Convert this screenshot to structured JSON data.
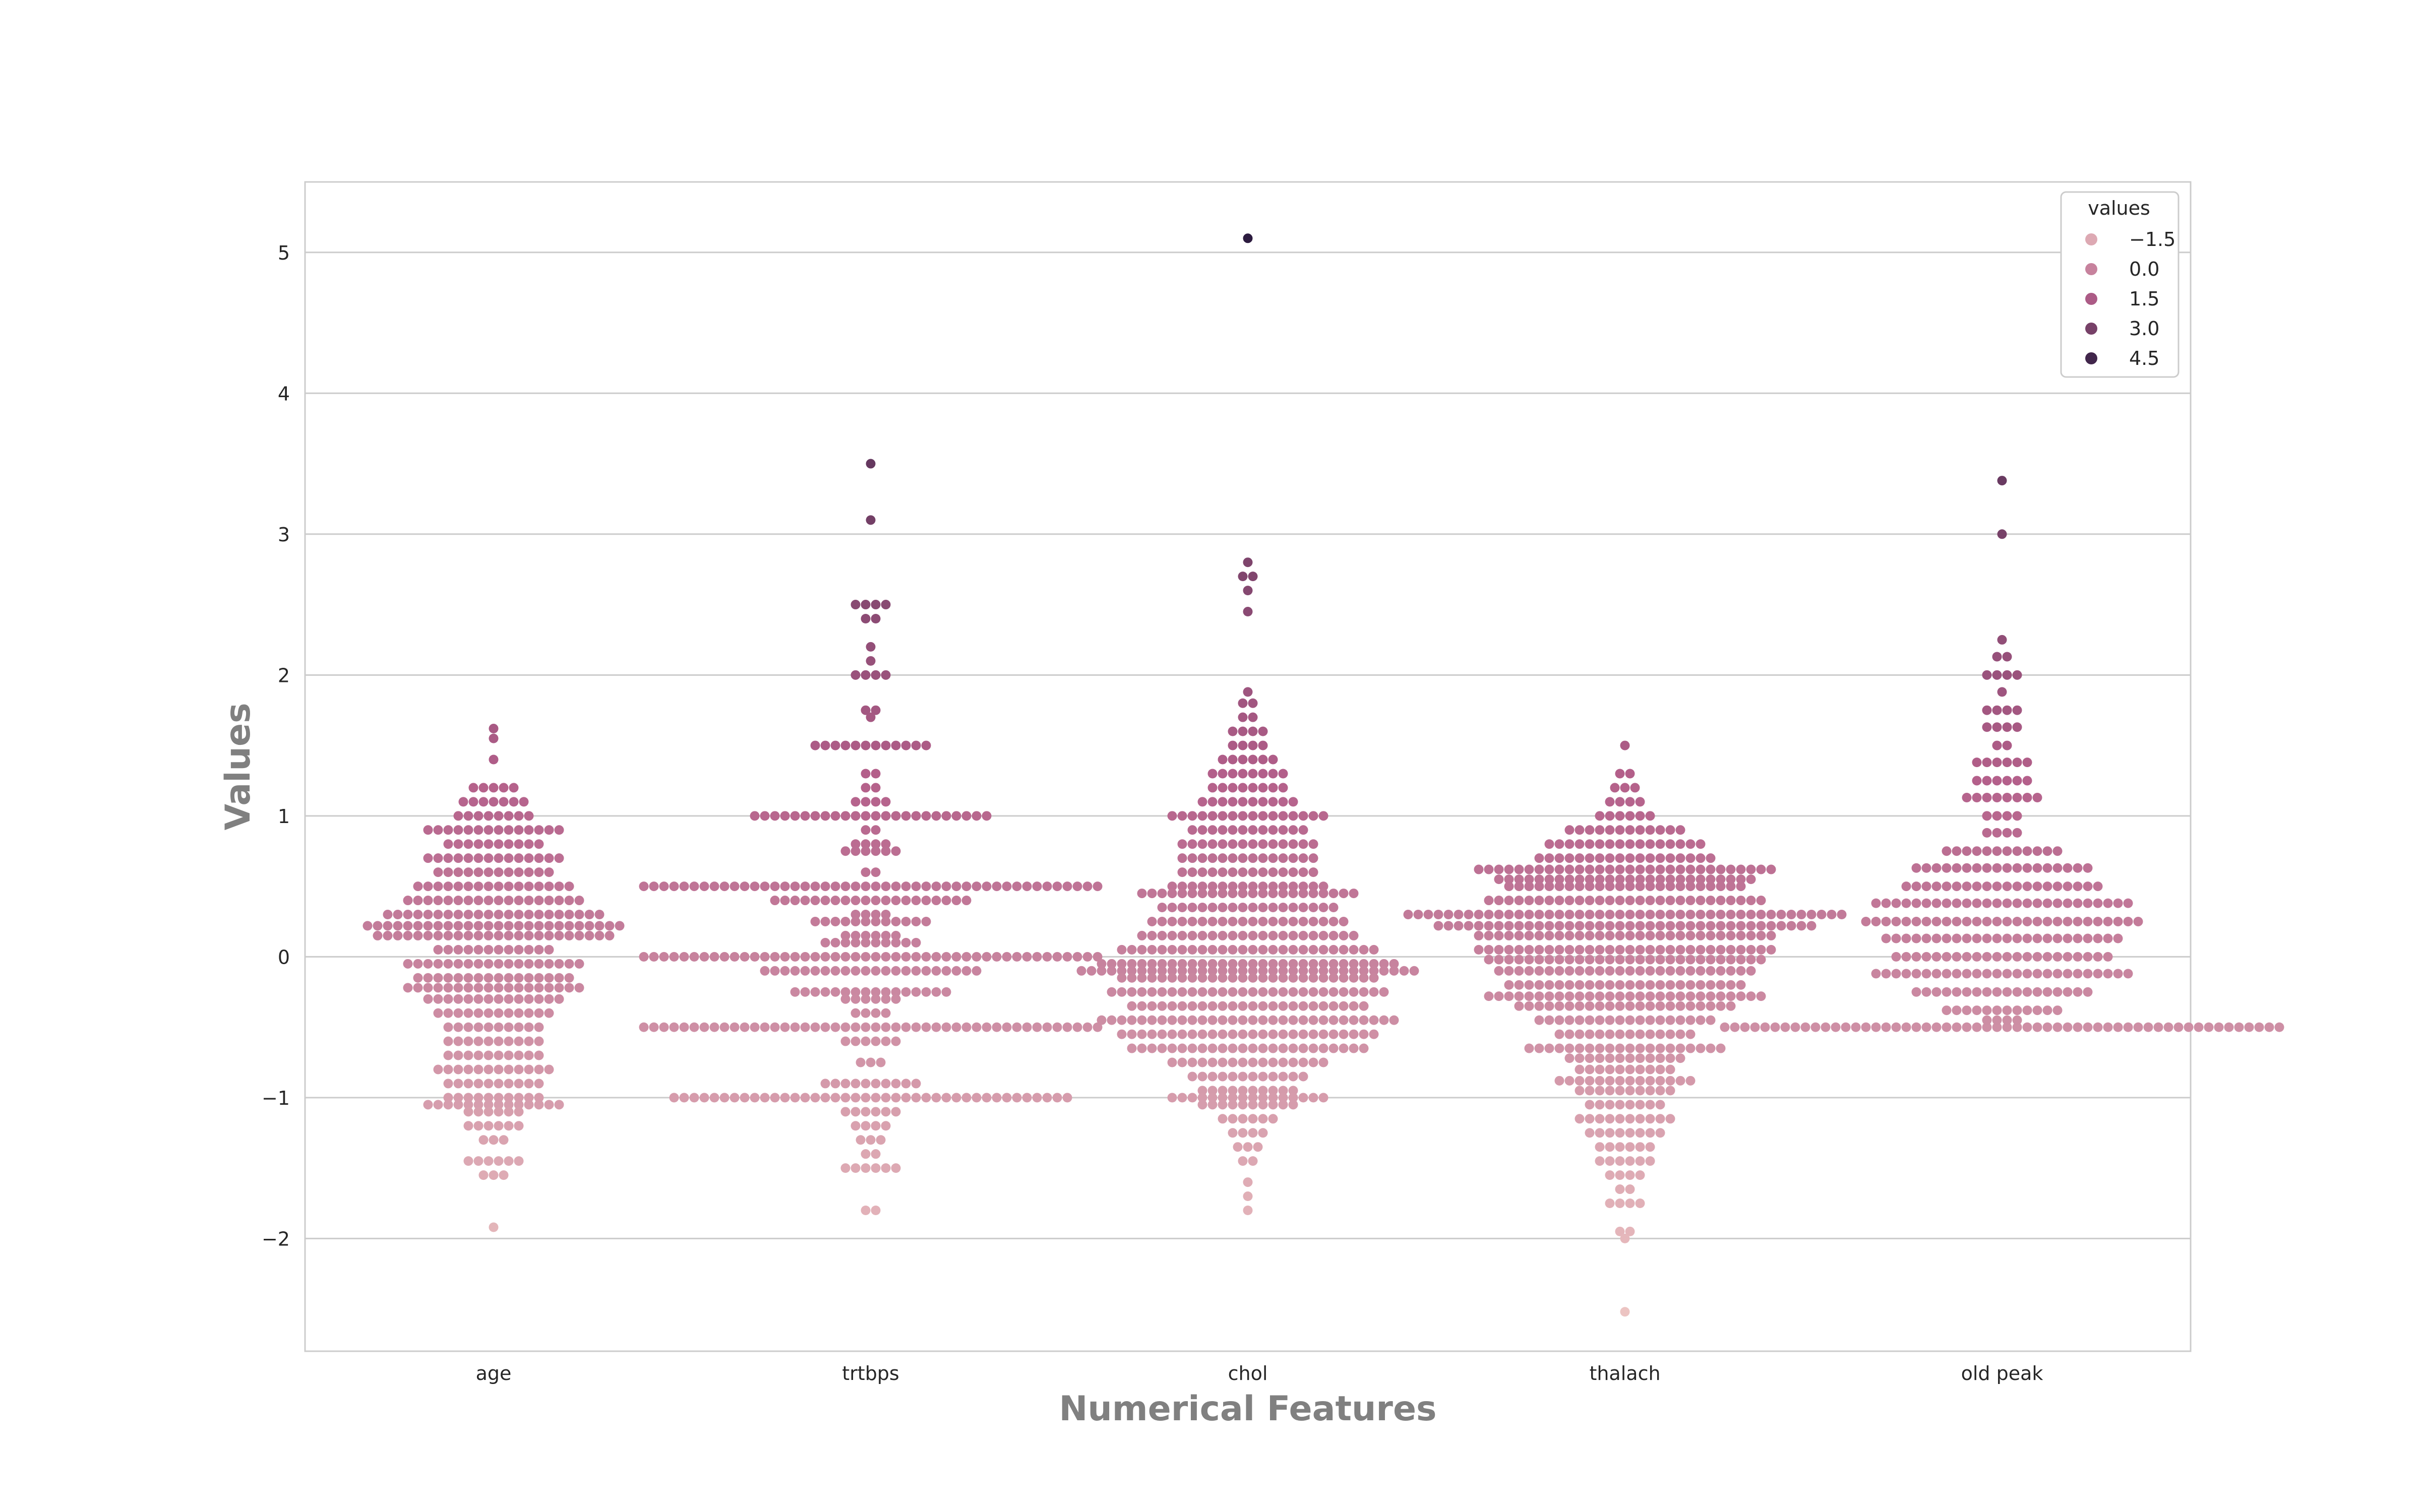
{
  "chart_data": {
    "type": "scatter",
    "subtype": "swarm",
    "xlabel": "Numerical Features",
    "ylabel": "Values",
    "categories": [
      "age",
      "trtbps",
      "chol",
      "thalach",
      "old peak"
    ],
    "ylim": [
      -2.8,
      5.5
    ],
    "yticks": [
      -2,
      -1,
      0,
      1,
      2,
      3,
      4,
      5
    ],
    "ytick_labels": [
      "−2",
      "−1",
      "0",
      "1",
      "2",
      "3",
      "4",
      "5"
    ],
    "grid": true,
    "legend": {
      "title": "values",
      "position": "top-right",
      "entries": [
        {
          "label": "−1.5",
          "value": -1.5
        },
        {
          "label": "0.0",
          "value": 0.0
        },
        {
          "label": "1.5",
          "value": 1.5
        },
        {
          "label": "3.0",
          "value": 3.0
        },
        {
          "label": "4.5",
          "value": 4.5
        }
      ]
    },
    "color_scale": {
      "min": -2.5,
      "max": 5.1,
      "low": "#ecc4c2",
      "mid": "#b35f8a",
      "high": "#2c1b3f"
    },
    "series": [
      {
        "category": "age",
        "groups": [
          [
            1.62,
            1
          ],
          [
            1.55,
            1
          ],
          [
            1.4,
            1
          ],
          [
            1.2,
            5
          ],
          [
            1.1,
            7
          ],
          [
            1.0,
            8
          ],
          [
            0.9,
            14
          ],
          [
            0.8,
            10
          ],
          [
            0.7,
            14
          ],
          [
            0.6,
            12
          ],
          [
            0.5,
            16
          ],
          [
            0.4,
            18
          ],
          [
            0.3,
            22
          ],
          [
            0.22,
            26
          ],
          [
            0.15,
            24
          ],
          [
            0.05,
            12
          ],
          [
            -0.05,
            18
          ],
          [
            -0.15,
            16
          ],
          [
            -0.22,
            18
          ],
          [
            -0.3,
            14
          ],
          [
            -0.4,
            12
          ],
          [
            -0.5,
            10
          ],
          [
            -0.6,
            10
          ],
          [
            -0.7,
            10
          ],
          [
            -0.8,
            12
          ],
          [
            -0.9,
            10
          ],
          [
            -1.0,
            10
          ],
          [
            -1.05,
            14
          ],
          [
            -1.1,
            6
          ],
          [
            -1.2,
            6
          ],
          [
            -1.3,
            3
          ],
          [
            -1.45,
            6
          ],
          [
            -1.55,
            3
          ],
          [
            -1.92,
            1
          ]
        ]
      },
      {
        "category": "trtbps",
        "groups": [
          [
            3.5,
            1
          ],
          [
            3.1,
            1
          ],
          [
            2.5,
            4
          ],
          [
            2.4,
            2
          ],
          [
            2.2,
            1
          ],
          [
            2.1,
            1
          ],
          [
            2.0,
            4
          ],
          [
            1.75,
            2
          ],
          [
            1.7,
            1
          ],
          [
            1.5,
            12
          ],
          [
            1.3,
            2
          ],
          [
            1.2,
            2
          ],
          [
            1.1,
            4
          ],
          [
            1.0,
            24
          ],
          [
            0.9,
            2
          ],
          [
            0.8,
            4
          ],
          [
            0.75,
            6
          ],
          [
            0.6,
            2
          ],
          [
            0.5,
            46
          ],
          [
            0.4,
            20
          ],
          [
            0.3,
            4
          ],
          [
            0.25,
            12
          ],
          [
            0.15,
            6
          ],
          [
            0.1,
            10
          ],
          [
            0.0,
            46
          ],
          [
            -0.1,
            22
          ],
          [
            -0.25,
            16
          ],
          [
            -0.3,
            6
          ],
          [
            -0.4,
            4
          ],
          [
            -0.5,
            46
          ],
          [
            -0.6,
            6
          ],
          [
            -0.75,
            3
          ],
          [
            -0.9,
            10
          ],
          [
            -1.0,
            40
          ],
          [
            -1.1,
            6
          ],
          [
            -1.2,
            4
          ],
          [
            -1.3,
            3
          ],
          [
            -1.4,
            2
          ],
          [
            -1.5,
            6
          ],
          [
            -1.8,
            2
          ]
        ]
      },
      {
        "category": "chol",
        "groups": [
          [
            5.1,
            1
          ],
          [
            2.8,
            1
          ],
          [
            2.7,
            2
          ],
          [
            2.6,
            1
          ],
          [
            2.45,
            1
          ],
          [
            1.88,
            1
          ],
          [
            1.8,
            2
          ],
          [
            1.7,
            2
          ],
          [
            1.6,
            4
          ],
          [
            1.5,
            4
          ],
          [
            1.4,
            6
          ],
          [
            1.3,
            8
          ],
          [
            1.2,
            8
          ],
          [
            1.1,
            10
          ],
          [
            1.0,
            16
          ],
          [
            0.9,
            12
          ],
          [
            0.8,
            14
          ],
          [
            0.7,
            14
          ],
          [
            0.6,
            14
          ],
          [
            0.5,
            16
          ],
          [
            0.45,
            22
          ],
          [
            0.35,
            18
          ],
          [
            0.25,
            20
          ],
          [
            0.15,
            22
          ],
          [
            0.05,
            26
          ],
          [
            -0.05,
            30
          ],
          [
            -0.1,
            34
          ],
          [
            -0.15,
            26
          ],
          [
            -0.25,
            28
          ],
          [
            -0.35,
            24
          ],
          [
            -0.45,
            30
          ],
          [
            -0.55,
            26
          ],
          [
            -0.65,
            24
          ],
          [
            -0.75,
            16
          ],
          [
            -0.85,
            12
          ],
          [
            -0.95,
            10
          ],
          [
            -1.0,
            16
          ],
          [
            -1.05,
            10
          ],
          [
            -1.15,
            6
          ],
          [
            -1.25,
            4
          ],
          [
            -1.35,
            3
          ],
          [
            -1.45,
            2
          ],
          [
            -1.6,
            1
          ],
          [
            -1.7,
            1
          ],
          [
            -1.8,
            1
          ]
        ]
      },
      {
        "category": "thalach",
        "groups": [
          [
            1.5,
            1
          ],
          [
            1.3,
            2
          ],
          [
            1.2,
            3
          ],
          [
            1.1,
            4
          ],
          [
            1.0,
            6
          ],
          [
            0.9,
            12
          ],
          [
            0.8,
            16
          ],
          [
            0.7,
            18
          ],
          [
            0.62,
            30
          ],
          [
            0.55,
            26
          ],
          [
            0.5,
            24
          ],
          [
            0.4,
            28
          ],
          [
            0.3,
            44
          ],
          [
            0.22,
            38
          ],
          [
            0.15,
            30
          ],
          [
            0.05,
            30
          ],
          [
            -0.02,
            28
          ],
          [
            -0.1,
            26
          ],
          [
            -0.2,
            24
          ],
          [
            -0.28,
            28
          ],
          [
            -0.35,
            22
          ],
          [
            -0.45,
            18
          ],
          [
            -0.55,
            14
          ],
          [
            -0.65,
            20
          ],
          [
            -0.72,
            12
          ],
          [
            -0.8,
            10
          ],
          [
            -0.88,
            14
          ],
          [
            -0.95,
            10
          ],
          [
            -1.05,
            8
          ],
          [
            -1.15,
            10
          ],
          [
            -1.25,
            8
          ],
          [
            -1.35,
            6
          ],
          [
            -1.45,
            6
          ],
          [
            -1.55,
            4
          ],
          [
            -1.65,
            2
          ],
          [
            -1.75,
            4
          ],
          [
            -1.95,
            2
          ],
          [
            -2.0,
            1
          ],
          [
            -2.52,
            1
          ]
        ]
      },
      {
        "category": "old peak",
        "groups": [
          [
            3.38,
            1
          ],
          [
            3.0,
            1
          ],
          [
            2.25,
            1
          ],
          [
            2.13,
            2
          ],
          [
            2.0,
            4
          ],
          [
            1.88,
            1
          ],
          [
            1.75,
            4
          ],
          [
            1.63,
            4
          ],
          [
            1.5,
            2
          ],
          [
            1.38,
            6
          ],
          [
            1.25,
            6
          ],
          [
            1.13,
            8
          ],
          [
            1.0,
            4
          ],
          [
            0.88,
            4
          ],
          [
            0.75,
            12
          ],
          [
            0.63,
            18
          ],
          [
            0.5,
            20
          ],
          [
            0.38,
            26
          ],
          [
            0.25,
            28
          ],
          [
            0.13,
            24
          ],
          [
            0.0,
            22
          ],
          [
            -0.12,
            26
          ],
          [
            -0.25,
            18
          ],
          [
            -0.38,
            12
          ],
          [
            -0.5,
            56
          ],
          [
            -0.45,
            4
          ]
        ]
      }
    ]
  }
}
